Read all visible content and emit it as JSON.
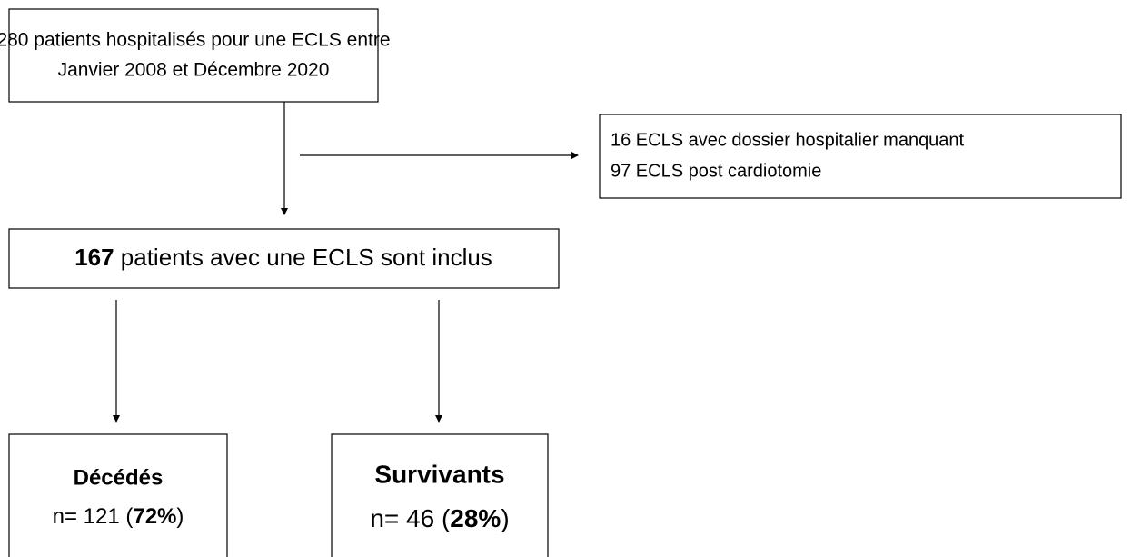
{
  "nodes": [
    {
      "lines": [
        "280 patients hospitalisés pour une ECLS entre",
        "Janvier 2008 et Décembre 2020"
      ]
    },
    {
      "lines": [
        "16 ECLS avec dossier hospitalier manquant",
        "97 ECLS post cardiotomie"
      ]
    },
    {
      "count": "167",
      "text": " patients avec une ECLS sont inclus"
    },
    {
      "label": "Décédés",
      "prefix": "n= 121 (",
      "percent": "72%",
      "suffix": ")"
    },
    {
      "label": "Survivants",
      "prefix": "n= 46 (",
      "percent": "28%",
      "suffix": ")"
    }
  ]
}
